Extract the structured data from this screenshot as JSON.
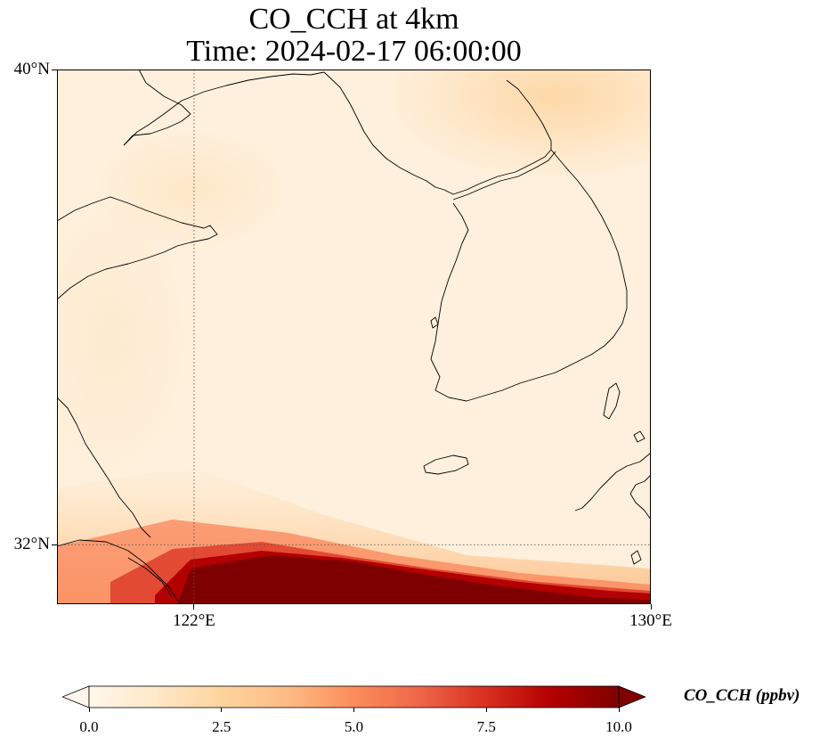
{
  "title": {
    "line1": "CO_CCH at 4km",
    "line2": "Time: 2024-02-17 06:00:00"
  },
  "map": {
    "extent_lon": [
      119.6,
      130.0
    ],
    "extent_lat": [
      31.0,
      40.0
    ],
    "projection": "lon/lat grid (PlateCarree-like)",
    "gridlines": {
      "lons": [
        122
      ],
      "lats": [
        32
      ],
      "style": "dotted"
    },
    "lat_ticks": [
      {
        "value": 40,
        "label": "40°N"
      },
      {
        "value": 32,
        "label": "32°N"
      }
    ],
    "lon_ticks": [
      {
        "value": 122,
        "label": "122°E"
      },
      {
        "value": 130,
        "label": "130°E"
      }
    ],
    "field": {
      "background_value_ppbv": 0.6,
      "high_region": "southern edge along roughly 31–32°N, saturating above 10 ppbv",
      "moderate_patches": [
        "northeast corner near 39.5–40°N, 125.5–128°E (~2 ppbv)",
        "around 121–122°E, 37.5°N (~1 ppbv)"
      ]
    },
    "coastline_color": "#000000"
  },
  "colorbar": {
    "label": "CO_CCH (ppbv)",
    "colormap": "OrRd",
    "min": 0.0,
    "max": 10.0,
    "extend": "both",
    "ticks": [
      "0.0",
      "2.5",
      "5.0",
      "7.5",
      "10.0"
    ],
    "colors": [
      "#fff7ec",
      "#fee8c8",
      "#fdd49e",
      "#fdbb84",
      "#fc8d59",
      "#ef6548",
      "#d7301f",
      "#b30000",
      "#7f0000"
    ]
  }
}
